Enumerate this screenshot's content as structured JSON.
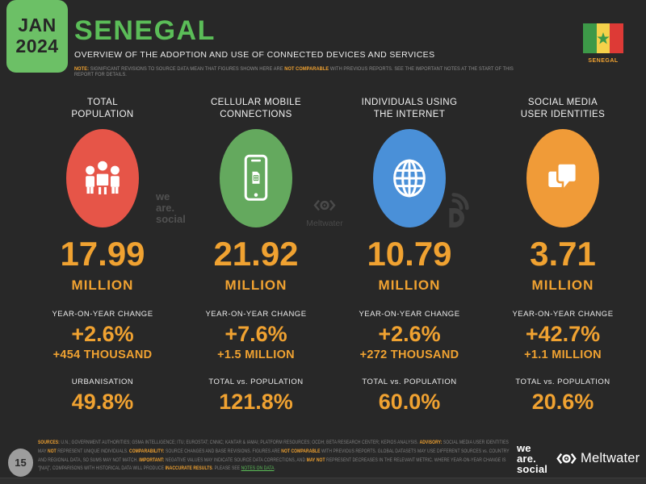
{
  "header": {
    "date": {
      "month": "JAN",
      "year": "2024"
    },
    "title": "SENEGAL",
    "subtitle": "OVERVIEW OF THE ADOPTION AND USE OF CONNECTED DEVICES AND SERVICES",
    "note_segments": [
      {
        "t": "NOTE: ",
        "c": "orange"
      },
      {
        "t": "SIGNIFICANT REVISIONS TO SOURCE DATA MEAN THAT FIGURES SHOWN HERE ARE "
      },
      {
        "t": "NOT COMPARABLE",
        "c": "orange"
      },
      {
        "t": " WITH PREVIOUS REPORTS. SEE THE IMPORTANT NOTES AT THE START OF THIS REPORT FOR DETAILS."
      }
    ],
    "flag_label": "SENEGAL"
  },
  "columns": [
    {
      "title_line1": "TOTAL",
      "title_line2": "POPULATION",
      "icon": "people-icon",
      "circle_color": "#e65548",
      "value": "17.99",
      "unit": "MILLION",
      "yoy_label": "YEAR-ON-YEAR CHANGE",
      "yoy_pct": "+2.6%",
      "yoy_abs": "+454 THOUSAND",
      "bottom_label": "URBANISATION",
      "bottom_value": "49.8%"
    },
    {
      "title_line1": "CELLULAR MOBILE",
      "title_line2": "CONNECTIONS",
      "icon": "mobile-phone-icon",
      "circle_color": "#64a95e",
      "value": "21.92",
      "unit": "MILLION",
      "yoy_label": "YEAR-ON-YEAR CHANGE",
      "yoy_pct": "+7.6%",
      "yoy_abs": "+1.5 MILLION",
      "bottom_label": "TOTAL vs. POPULATION",
      "bottom_value": "121.8%"
    },
    {
      "title_line1": "INDIVIDUALS USING",
      "title_line2": "THE INTERNET",
      "icon": "globe-icon",
      "circle_color": "#4a90d8",
      "value": "10.79",
      "unit": "MILLION",
      "yoy_label": "YEAR-ON-YEAR CHANGE",
      "yoy_pct": "+2.6%",
      "yoy_abs": "+272 THOUSAND",
      "bottom_label": "TOTAL vs. POPULATION",
      "bottom_value": "60.0%"
    },
    {
      "title_line1": "SOCIAL MEDIA",
      "title_line2": "USER IDENTITIES",
      "icon": "chat-bubbles-icon",
      "circle_color": "#f09b38",
      "value": "3.71",
      "unit": "MILLION",
      "yoy_label": "YEAR-ON-YEAR CHANGE",
      "yoy_pct": "+42.7%",
      "yoy_abs": "+1.1 MILLION",
      "bottom_label": "TOTAL vs. POPULATION",
      "bottom_value": "20.6%"
    }
  ],
  "watermarks": {
    "we_are_social_lines": [
      "we",
      "are.",
      "social"
    ],
    "meltwater": "Meltwater"
  },
  "footer": {
    "page_number": "15",
    "text_segments": [
      {
        "t": "SOURCES:",
        "c": "orange"
      },
      {
        "t": " U.N.; GOVERNMENT AUTHORITIES; GSMA INTELLIGENCE; ITU; EUROSTAT; CNNIC; KANTAR & IAMAI; PLATFORM RESOURCES; OCDH; BETA RESEARCH CENTER; KEPIOS ANALYSIS. "
      },
      {
        "t": "ADVISORY:",
        "c": "orange"
      },
      {
        "t": " SOCIAL MEDIA USER IDENTITIES MAY "
      },
      {
        "t": "NOT",
        "c": "orange"
      },
      {
        "t": " REPRESENT UNIQUE INDIVIDUALS. "
      },
      {
        "t": "COMPARABILITY:",
        "c": "orange"
      },
      {
        "t": " SOURCE CHANGES AND BASE REVISIONS. FIGURES ARE "
      },
      {
        "t": "NOT COMPARABLE",
        "c": "orange"
      },
      {
        "t": " WITH PREVIOUS REPORTS. GLOBAL DATASETS MAY USE DIFFERENT SOURCES vs. COUNTRY AND REGIONAL DATA, SO SUMS MAY NOT MATCH. "
      },
      {
        "t": "IMPORTANT:",
        "c": "orange"
      },
      {
        "t": " NEGATIVE VALUES MAY INDICATE SOURCE DATA CORRECTIONS, AND "
      },
      {
        "t": "MAY NOT",
        "c": "orange"
      },
      {
        "t": " REPRESENT DECREASES IN THE RELEVANT METRIC. WHERE YEAR-ON-YEAR CHANGE IS “[N/A]”, COMPARISONS WITH HISTORICAL DATA WILL PRODUCE "
      },
      {
        "t": "INACCURATE RESULTS",
        "c": "orange"
      },
      {
        "t": ". PLEASE SEE "
      },
      {
        "t": "NOTES ON DATA",
        "c": "green",
        "name": "notes-on-data-link",
        "link": true
      },
      {
        "t": "."
      }
    ],
    "we_are_social_lines": [
      "we",
      "are.",
      "social"
    ],
    "meltwater": "Meltwater"
  },
  "colors": {
    "background": "#282828",
    "accent_orange": "#f0a231",
    "accent_green": "#5bbd58",
    "date_badge_green": "#6cc066",
    "population_red": "#e65548",
    "mobile_green": "#64a95e",
    "internet_blue": "#4a90d8",
    "social_orange": "#f09b38",
    "flag_green": "#3d9948",
    "flag_yellow": "#f5d14a",
    "flag_red": "#dd3a36"
  }
}
